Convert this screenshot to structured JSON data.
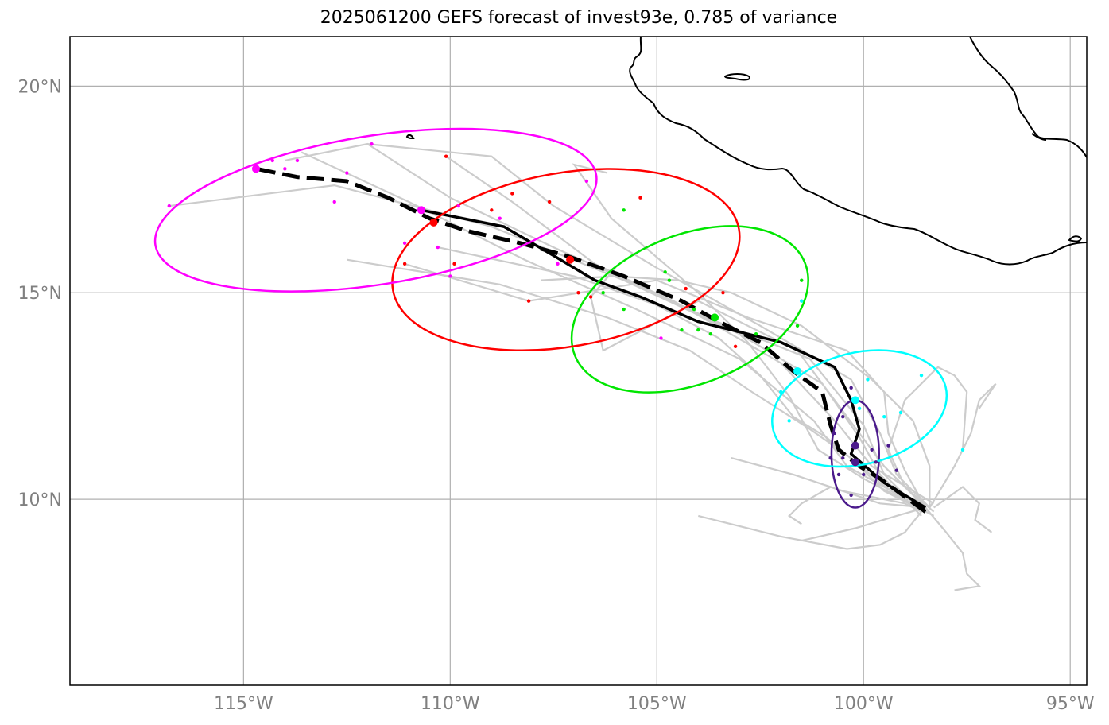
{
  "title": "2025061200 GEFS forecast of invest93e, 0.785 of variance",
  "axes": {
    "lon_range": [
      -119.2,
      -94.6
    ],
    "lat_range": [
      5.5,
      21.2
    ],
    "x_ticks": [
      {
        "lon": -115,
        "label": "115°W"
      },
      {
        "lon": -110,
        "label": "110°W"
      },
      {
        "lon": -105,
        "label": "105°W"
      },
      {
        "lon": -100,
        "label": "100°W"
      },
      {
        "lon": -95,
        "label": "95°W"
      }
    ],
    "y_ticks": [
      {
        "lat": 20,
        "label": "20°N"
      },
      {
        "lat": 15,
        "label": "15°N"
      },
      {
        "lat": 10,
        "label": "10°N"
      }
    ],
    "grid": true
  },
  "colors": {
    "member_track": "#cccccc",
    "mean_track": "#000000",
    "coast": "#000000",
    "grid": "#b0b0b0",
    "ellipses": [
      "#4b1a8c",
      "#00ffff",
      "#00e600",
      "#ff0000",
      "#ff00ff"
    ]
  },
  "chart_data": {
    "type": "map",
    "ensemble_mean_track": [
      [
        -98.5,
        9.8
      ],
      [
        -99.5,
        10.4
      ],
      [
        -100.3,
        11.1
      ],
      [
        -100.1,
        11.7
      ],
      [
        -100.3,
        12.4
      ],
      [
        -100.7,
        13.2
      ],
      [
        -102.0,
        13.8
      ],
      [
        -104.0,
        14.3
      ],
      [
        -105.4,
        14.9
      ],
      [
        -106.5,
        15.3
      ],
      [
        -107.5,
        15.9
      ],
      [
        -108.7,
        16.6
      ],
      [
        -110.7,
        17.0
      ]
    ],
    "mean_track_dashed": [
      [
        -98.5,
        9.7
      ],
      [
        -99.6,
        10.5
      ],
      [
        -100.1,
        10.8
      ],
      [
        -100.6,
        11.2
      ],
      [
        -100.8,
        11.8
      ],
      [
        -101.0,
        12.6
      ],
      [
        -101.7,
        13.1
      ],
      [
        -102.5,
        13.8
      ],
      [
        -103.5,
        14.3
      ],
      [
        -104.4,
        14.8
      ],
      [
        -105.8,
        15.4
      ],
      [
        -107.2,
        15.9
      ],
      [
        -108.3,
        16.2
      ],
      [
        -109.6,
        16.5
      ],
      [
        -110.5,
        16.8
      ],
      [
        -111.5,
        17.3
      ],
      [
        -112.5,
        17.7
      ],
      [
        -113.7,
        17.8
      ],
      [
        -114.7,
        18.0
      ]
    ],
    "ellipses": [
      {
        "color": "#4b1a8c",
        "center": [
          -100.2,
          11.1
        ],
        "rx_deg": 1.15,
        "ry_deg": 1.3,
        "angle": 0
      },
      {
        "color": "#00ffff",
        "center": [
          -100.1,
          12.2
        ],
        "rx_deg": 4.3,
        "ry_deg": 1.35,
        "angle": -14
      },
      {
        "color": "#00e600",
        "center": [
          -104.2,
          14.6
        ],
        "rx_deg": 6.0,
        "ry_deg": 1.8,
        "angle": -22
      },
      {
        "color": "#ff0000",
        "center": [
          -107.2,
          15.8
        ],
        "rx_deg": 8.5,
        "ry_deg": 2.1,
        "angle": -10
      },
      {
        "color": "#ff00ff",
        "center": [
          -111.8,
          17.0
        ],
        "rx_deg": 10.8,
        "ry_deg": 1.8,
        "angle": -9
      }
    ],
    "ellipse_centers": [
      {
        "color": "#4b1a8c",
        "lon": -100.2,
        "lat": 10.9
      },
      {
        "color": "#4b1a8c",
        "lon": -100.2,
        "lat": 11.3
      },
      {
        "color": "#00ffff",
        "lon": -101.6,
        "lat": 13.1
      },
      {
        "color": "#00ffff",
        "lon": -100.2,
        "lat": 12.4
      },
      {
        "color": "#00e600",
        "lon": -103.6,
        "lat": 14.4
      },
      {
        "color": "#ff0000",
        "lon": -107.1,
        "lat": 15.8
      },
      {
        "color": "#ff0000",
        "lon": -110.4,
        "lat": 16.7
      },
      {
        "color": "#ff00ff",
        "lon": -110.7,
        "lat": 17.0
      },
      {
        "color": "#ff00ff",
        "lon": -114.7,
        "lat": 18.0
      }
    ],
    "member_points": [
      {
        "color": "#4b1a8c",
        "pts": [
          [
            -100.5,
            11.0
          ],
          [
            -100.0,
            10.6
          ],
          [
            -99.7,
            10.9
          ],
          [
            -100.7,
            11.6
          ],
          [
            -99.4,
            11.3
          ],
          [
            -100.3,
            12.7
          ],
          [
            -100.6,
            10.6
          ],
          [
            -99.2,
            10.7
          ],
          [
            -99.8,
            11.2
          ],
          [
            -100.3,
            10.1
          ],
          [
            -100.8,
            11.0
          ],
          [
            -100.5,
            12.0
          ]
        ]
      },
      {
        "color": "#00ffff",
        "pts": [
          [
            -98.6,
            13.0
          ],
          [
            -99.1,
            12.1
          ],
          [
            -99.5,
            12.0
          ],
          [
            -101.8,
            11.9
          ],
          [
            -99.9,
            12.9
          ],
          [
            -97.6,
            11.2
          ],
          [
            -101.5,
            14.8
          ],
          [
            -100.1,
            12.2
          ],
          [
            -102.0,
            12.6
          ]
        ]
      },
      {
        "color": "#00e600",
        "pts": [
          [
            -105.8,
            17.0
          ],
          [
            -104.7,
            15.3
          ],
          [
            -101.5,
            15.3
          ],
          [
            -105.8,
            14.6
          ],
          [
            -103.7,
            14.0
          ],
          [
            -104.1,
            14.6
          ],
          [
            -101.6,
            14.2
          ],
          [
            -102.6,
            14.0
          ],
          [
            -104.4,
            14.1
          ],
          [
            -104.8,
            15.5
          ],
          [
            -106.3,
            15.0
          ],
          [
            -104.0,
            14.1
          ]
        ]
      },
      {
        "color": "#ff0000",
        "pts": [
          [
            -110.1,
            18.3
          ],
          [
            -108.5,
            17.4
          ],
          [
            -107.6,
            17.2
          ],
          [
            -105.4,
            17.3
          ],
          [
            -109.0,
            17.0
          ],
          [
            -111.1,
            15.7
          ],
          [
            -109.9,
            15.7
          ],
          [
            -108.1,
            14.8
          ],
          [
            -106.6,
            14.9
          ],
          [
            -103.4,
            15.0
          ],
          [
            -104.3,
            15.1
          ],
          [
            -103.1,
            13.7
          ],
          [
            -106.9,
            15.0
          ]
        ]
      },
      {
        "color": "#ff00ff",
        "pts": [
          [
            -116.8,
            17.1
          ],
          [
            -114.3,
            18.2
          ],
          [
            -113.7,
            18.2
          ],
          [
            -112.8,
            17.2
          ],
          [
            -112.5,
            17.9
          ],
          [
            -111.9,
            18.6
          ],
          [
            -111.1,
            16.2
          ],
          [
            -110.3,
            16.1
          ],
          [
            -109.8,
            17.1
          ],
          [
            -108.8,
            16.8
          ],
          [
            -106.7,
            17.7
          ],
          [
            -104.9,
            13.9
          ],
          [
            -107.4,
            15.7
          ],
          [
            -110.0,
            15.4
          ],
          [
            -114.0,
            18.0
          ]
        ]
      }
    ],
    "member_tracks": [
      [
        [
          -98.5,
          9.7
        ],
        [
          -99.5,
          10.3
        ],
        [
          -100.4,
          10.8
        ],
        [
          -101.2,
          11.9
        ],
        [
          -103.0,
          13.4
        ],
        [
          -105.5,
          14.6
        ],
        [
          -108.2,
          15.8
        ],
        [
          -111.0,
          17.2
        ],
        [
          -113.6,
          18.4
        ]
      ],
      [
        [
          -98.3,
          9.9
        ],
        [
          -99.8,
          10.8
        ],
        [
          -100.6,
          11.8
        ],
        [
          -102.0,
          13.3
        ],
        [
          -104.6,
          14.8
        ],
        [
          -107.5,
          16.1
        ],
        [
          -110.0,
          17.3
        ],
        [
          -112.0,
          18.6
        ],
        [
          -114.0,
          18.2
        ]
      ],
      [
        [
          -98.6,
          9.6
        ],
        [
          -99.6,
          10.6
        ],
        [
          -100.1,
          11.5
        ],
        [
          -101.0,
          12.8
        ],
        [
          -103.0,
          14.0
        ],
        [
          -105.8,
          15.3
        ],
        [
          -109.0,
          16.6
        ],
        [
          -112.8,
          17.6
        ],
        [
          -116.8,
          17.1
        ]
      ],
      [
        [
          -98.4,
          9.8
        ],
        [
          -99.2,
          10.6
        ],
        [
          -99.6,
          11.6
        ],
        [
          -100.3,
          12.9
        ],
        [
          -102.5,
          14.2
        ],
        [
          -105.0,
          15.6
        ],
        [
          -107.5,
          17.1
        ],
        [
          -109.0,
          18.3
        ],
        [
          -112.0,
          18.6
        ]
      ],
      [
        [
          -98.6,
          9.7
        ],
        [
          -99.5,
          10.6
        ],
        [
          -100.0,
          11.8
        ],
        [
          -101.3,
          13.4
        ],
        [
          -103.8,
          14.4
        ],
        [
          -106.5,
          15.7
        ],
        [
          -108.5,
          17.2
        ],
        [
          -110.1,
          18.3
        ]
      ],
      [
        [
          -98.3,
          9.6
        ],
        [
          -100.0,
          10.5
        ],
        [
          -101.1,
          11.2
        ],
        [
          -101.8,
          12.5
        ],
        [
          -102.8,
          13.8
        ],
        [
          -104.0,
          15.0
        ],
        [
          -106.1,
          16.8
        ],
        [
          -107.0,
          18.1
        ],
        [
          -106.2,
          17.9
        ]
      ],
      [
        [
          -98.7,
          9.8
        ],
        [
          -99.5,
          10.2
        ],
        [
          -100.2,
          10.9
        ],
        [
          -100.9,
          11.5
        ],
        [
          -101.7,
          12.0
        ],
        [
          -102.5,
          13.0
        ],
        [
          -103.5,
          13.9
        ],
        [
          -105.0,
          14.7
        ],
        [
          -107.0,
          15.4
        ],
        [
          -110.3,
          16.1
        ]
      ],
      [
        [
          -98.5,
          9.8
        ],
        [
          -99.0,
          10.7
        ],
        [
          -99.4,
          11.6
        ],
        [
          -99.5,
          12.6
        ],
        [
          -100.4,
          13.6
        ],
        [
          -102.8,
          14.4
        ],
        [
          -105.0,
          15.3
        ],
        [
          -108.1,
          14.8
        ],
        [
          -111.1,
          15.7
        ]
      ],
      [
        [
          -98.6,
          9.7
        ],
        [
          -99.6,
          10.4
        ],
        [
          -100.3,
          11.0
        ],
        [
          -101.3,
          11.7
        ],
        [
          -102.7,
          12.6
        ],
        [
          -104.2,
          13.6
        ],
        [
          -106.2,
          14.4
        ],
        [
          -108.8,
          15.2
        ],
        [
          -112.5,
          15.8
        ]
      ],
      [
        [
          -98.5,
          9.8
        ],
        [
          -99.5,
          10.8
        ],
        [
          -100.4,
          12.0
        ],
        [
          -101.6,
          13.6
        ],
        [
          -104.0,
          14.8
        ],
        [
          -106.3,
          13.6
        ],
        [
          -106.6,
          14.9
        ],
        [
          -106.0,
          15.6
        ]
      ],
      [
        [
          -98.3,
          9.7
        ],
        [
          -99.0,
          10.3
        ],
        [
          -99.4,
          11.2
        ],
        [
          -99.0,
          12.4
        ],
        [
          -98.2,
          13.2
        ],
        [
          -97.8,
          13.0
        ],
        [
          -97.5,
          12.6
        ],
        [
          -97.6,
          11.2
        ]
      ],
      [
        [
          -98.4,
          9.8
        ],
        [
          -98.4,
          10.8
        ],
        [
          -98.8,
          11.9
        ],
        [
          -99.8,
          12.9
        ],
        [
          -101.5,
          14.2
        ],
        [
          -103.2,
          15.0
        ],
        [
          -104.5,
          15.3
        ],
        [
          -106.0,
          15.4
        ],
        [
          -107.8,
          15.3
        ]
      ],
      [
        [
          -98.5,
          9.8
        ],
        [
          -98.0,
          9.2
        ],
        [
          -97.6,
          8.7
        ],
        [
          -97.5,
          8.2
        ],
        [
          -97.2,
          7.9
        ],
        [
          -97.8,
          7.8
        ]
      ],
      [
        [
          -98.5,
          9.8
        ],
        [
          -99.6,
          9.9
        ],
        [
          -100.8,
          10.3
        ],
        [
          -101.5,
          9.9
        ],
        [
          -101.8,
          9.6
        ],
        [
          -101.5,
          9.4
        ]
      ],
      [
        [
          -98.6,
          9.7
        ],
        [
          -99.0,
          9.2
        ],
        [
          -99.6,
          8.9
        ],
        [
          -100.4,
          8.8
        ],
        [
          -102.0,
          9.1
        ],
        [
          -104.0,
          9.6
        ]
      ],
      [
        [
          -98.3,
          9.8
        ],
        [
          -97.6,
          10.3
        ],
        [
          -97.2,
          9.9
        ],
        [
          -97.3,
          9.5
        ],
        [
          -96.9,
          9.2
        ]
      ],
      [
        [
          -98.5,
          9.8
        ],
        [
          -99.2,
          9.6
        ],
        [
          -100.2,
          9.3
        ],
        [
          -101.5,
          9.0
        ]
      ],
      [
        [
          -98.6,
          9.7
        ],
        [
          -99.0,
          9.9
        ],
        [
          -100.5,
          10.2
        ],
        [
          -101.7,
          10.6
        ],
        [
          -103.2,
          11.0
        ]
      ],
      [
        [
          -98.4,
          9.8
        ],
        [
          -97.8,
          10.8
        ],
        [
          -97.4,
          11.6
        ],
        [
          -97.2,
          12.4
        ],
        [
          -96.8,
          12.8
        ],
        [
          -97.2,
          12.2
        ]
      ]
    ]
  }
}
